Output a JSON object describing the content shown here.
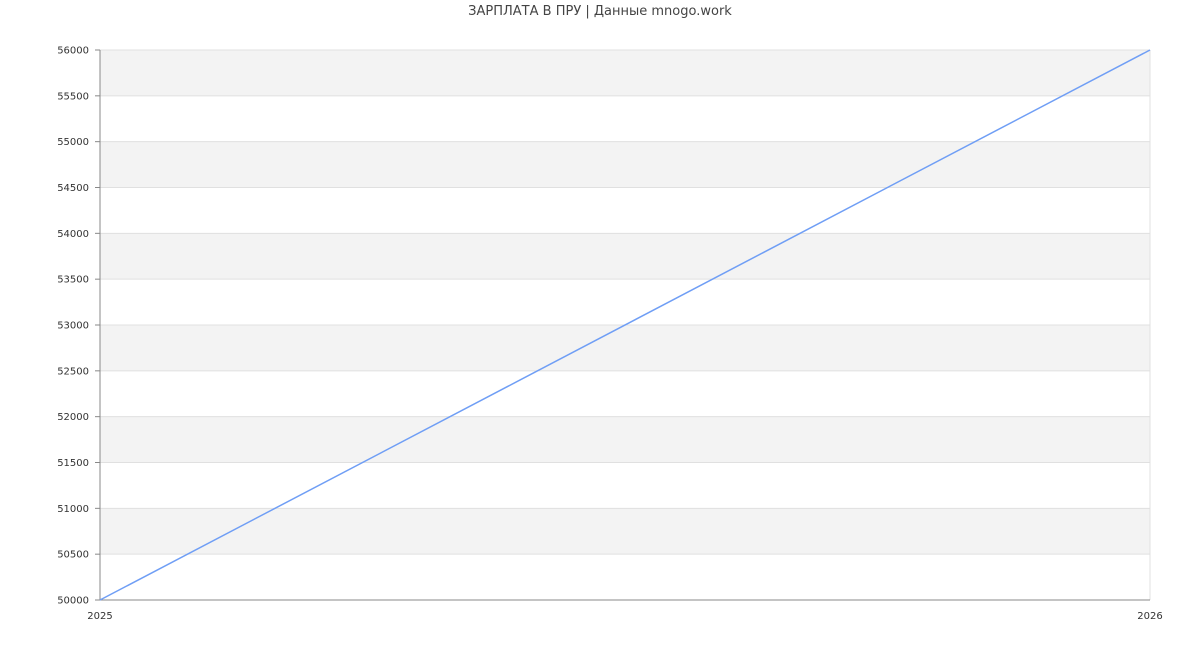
{
  "chart_data": {
    "type": "line",
    "title": "ЗАРПЛАТА В ПРУ | Данные mnogo.work",
    "xlabel": "",
    "ylabel": "",
    "x": [
      2025,
      2026
    ],
    "x_tick_labels": [
      "2025",
      "2026"
    ],
    "series": [
      {
        "values": [
          50000,
          56000
        ],
        "color": "#6f9ef5"
      }
    ],
    "xlim": [
      2025,
      2026
    ],
    "ylim": [
      50000,
      56000
    ],
    "y_ticks": [
      50000,
      50500,
      51000,
      51500,
      52000,
      52500,
      53000,
      53500,
      54000,
      54500,
      55000,
      55500,
      56000
    ],
    "grid": true,
    "band_color": "#f3f3f3",
    "gridline_color": "#e0e0e0",
    "axis_color": "#888888"
  }
}
